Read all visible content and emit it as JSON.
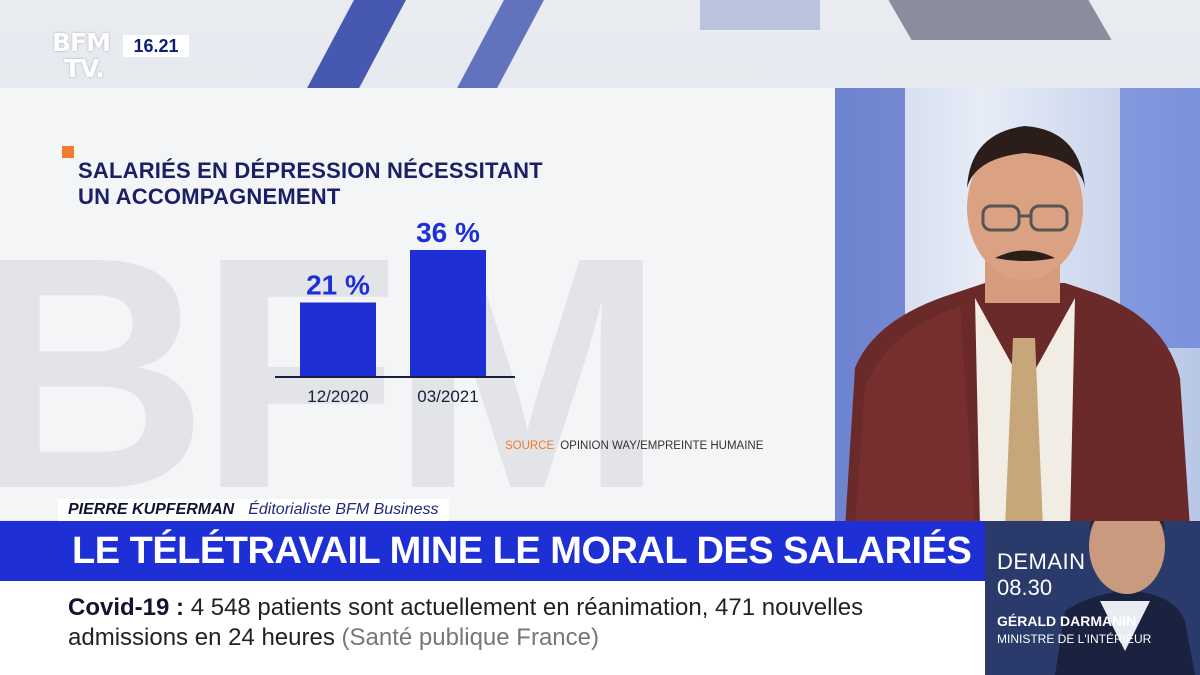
{
  "channel": {
    "logo_line1": "BFM",
    "logo_line2": "TV.",
    "clock": "16.21"
  },
  "infographic": {
    "title_line1": "SALARIÉS EN DÉPRESSION NÉCESSITANT",
    "title_line2": "UN ACCOMPAGNEMENT",
    "source_label": "SOURCE",
    "source_text": "OPINION WAY/EMPREINTE HUMAINE",
    "accent_color": "#f07a2e",
    "bar_color": "#1f2fd6"
  },
  "chart_data": {
    "type": "bar",
    "categories": [
      "12/2020",
      "03/2021"
    ],
    "values": [
      21,
      36
    ],
    "value_labels": [
      "21 %",
      "36 %"
    ],
    "title": "SALARIÉS EN DÉPRESSION NÉCESSITANT UN ACCOMPAGNEMENT",
    "ylim": [
      0,
      40
    ]
  },
  "lower_third": {
    "name": "PIERRE KUPFERMAN",
    "role": "Éditorialiste BFM Business",
    "headline": "LE TÉLÉTRAVAIL MINE LE MORAL DES SALARIÉS",
    "headline_color": "#1f2fd6"
  },
  "ticker": {
    "keyword": "Covid-19",
    "separator": ":",
    "text": "4 548 patients sont actuellement en réanimation, 471 nouvelles admissions en 24 heures",
    "source": "(Santé publique France)"
  },
  "promo": {
    "day": "DEMAIN",
    "time": "08.30",
    "guest": "GÉRALD DARMANIN",
    "guest_title": "MINISTRE DE L'INTÉRIEUR"
  }
}
